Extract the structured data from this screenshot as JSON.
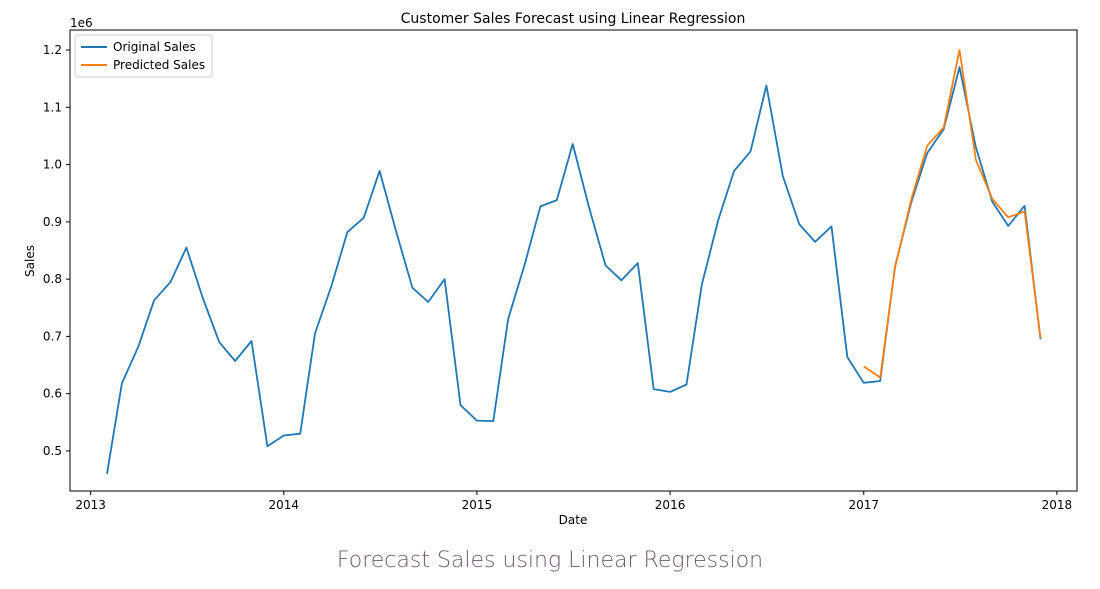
{
  "caption": "Forecast Sales using Linear Regression",
  "chart_data": {
    "type": "line",
    "title": "Customer Sales Forecast using Linear Regression",
    "xlabel": "Date",
    "ylabel": "Sales",
    "y_offset_label": "1e6",
    "xlim": [
      "2012-11-23",
      "2018-02-08"
    ],
    "ylim": [
      0.43,
      1.235
    ],
    "x_ticks": [
      "2013",
      "2014",
      "2015",
      "2016",
      "2017",
      "2018"
    ],
    "y_ticks": [
      "0.5",
      "0.6",
      "0.7",
      "0.8",
      "0.9",
      "1.0",
      "1.1",
      "1.2"
    ],
    "grid": false,
    "legend_position": "upper left",
    "series": [
      {
        "name": "Original Sales",
        "color": "#1f77b4",
        "x": [
          "2013-02-01",
          "2013-03-01",
          "2013-04-01",
          "2013-05-01",
          "2013-06-01",
          "2013-07-01",
          "2013-08-01",
          "2013-09-01",
          "2013-10-01",
          "2013-11-01",
          "2013-12-01",
          "2014-01-01",
          "2014-02-01",
          "2014-03-01",
          "2014-04-01",
          "2014-05-01",
          "2014-06-01",
          "2014-07-01",
          "2014-08-01",
          "2014-09-01",
          "2014-10-01",
          "2014-11-01",
          "2014-12-01",
          "2015-01-01",
          "2015-02-01",
          "2015-03-01",
          "2015-04-01",
          "2015-05-01",
          "2015-06-01",
          "2015-07-01",
          "2015-08-01",
          "2015-09-01",
          "2015-10-01",
          "2015-11-01",
          "2015-12-01",
          "2016-01-01",
          "2016-02-01",
          "2016-03-01",
          "2016-04-01",
          "2016-05-01",
          "2016-06-01",
          "2016-07-01",
          "2016-08-01",
          "2016-09-01",
          "2016-10-01",
          "2016-11-01",
          "2016-12-01",
          "2017-01-01",
          "2017-02-01",
          "2017-03-01",
          "2017-04-01",
          "2017-05-01",
          "2017-06-01",
          "2017-07-01",
          "2017-08-01",
          "2017-09-01",
          "2017-10-01",
          "2017-11-01",
          "2017-12-01"
        ],
        "values": [
          0.46,
          0.618,
          0.682,
          0.763,
          0.795,
          0.855,
          0.767,
          0.69,
          0.657,
          0.692,
          0.508,
          0.527,
          0.53,
          0.705,
          0.788,
          0.882,
          0.907,
          0.989,
          0.884,
          0.785,
          0.76,
          0.8,
          0.58,
          0.553,
          0.552,
          0.73,
          0.825,
          0.927,
          0.938,
          1.036,
          0.925,
          0.824,
          0.798,
          0.828,
          0.608,
          0.603,
          0.616,
          0.79,
          0.903,
          0.989,
          1.023,
          1.138,
          0.98,
          0.896,
          0.865,
          0.892,
          0.664,
          0.619,
          0.622,
          0.822,
          0.935,
          1.02,
          1.062,
          1.17,
          1.03,
          0.935,
          0.893,
          0.928,
          0.695
        ]
      },
      {
        "name": "Predicted Sales",
        "color": "#ff7f0e",
        "x": [
          "2017-01-01",
          "2017-02-01",
          "2017-03-01",
          "2017-04-01",
          "2017-05-01",
          "2017-06-01",
          "2017-07-01",
          "2017-08-01",
          "2017-09-01",
          "2017-10-01",
          "2017-11-01",
          "2017-12-01"
        ],
        "values": [
          0.648,
          0.628,
          0.82,
          0.94,
          1.033,
          1.065,
          1.2,
          1.008,
          0.94,
          0.908,
          0.918,
          0.697
        ]
      }
    ]
  }
}
